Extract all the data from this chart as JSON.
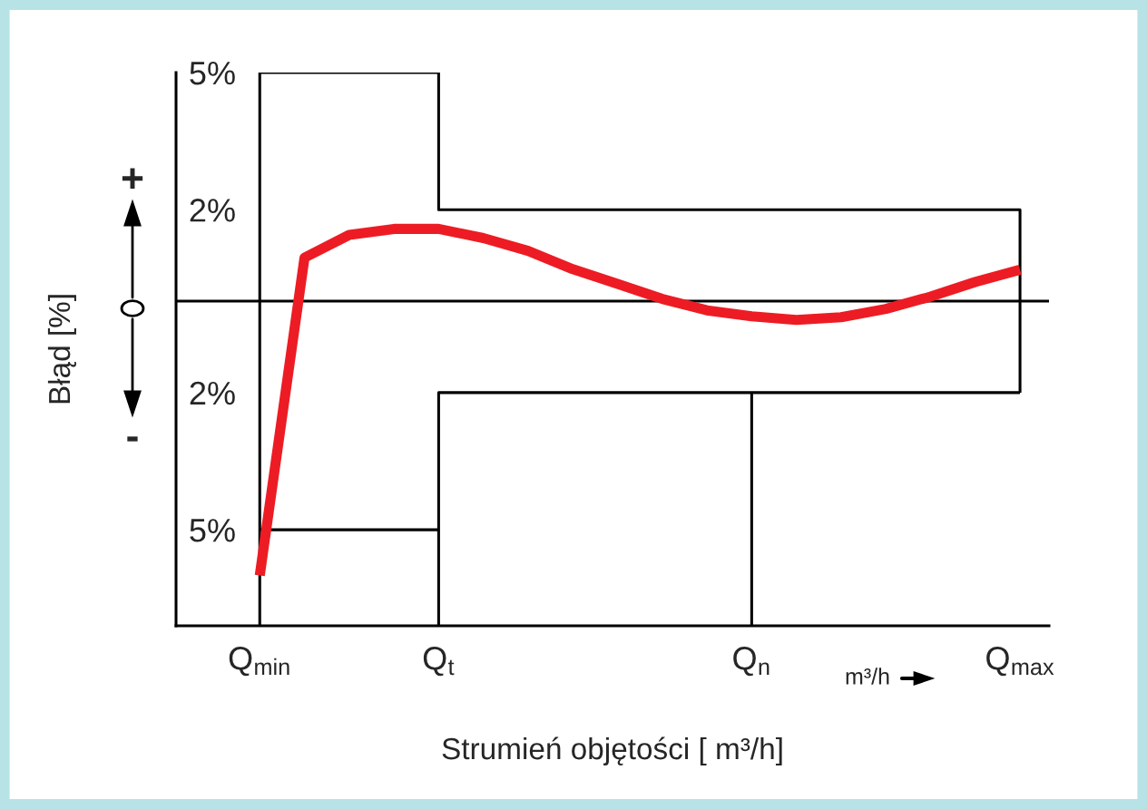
{
  "chart_data": {
    "type": "line",
    "xlabel": "Strumień objętości [ m³/h]",
    "ylabel": "Błąd [%]",
    "categories": [
      "Q$_{min}$",
      null,
      null,
      null,
      "Q$_{t}$",
      null,
      null,
      null,
      null,
      null,
      null,
      "Q$_{n}$",
      null,
      null,
      null,
      null,
      null,
      "Q$_{max}$"
    ],
    "ylim": [
      -7.1,
      5
    ],
    "yticks": [
      {
        "value": 5,
        "label": "5%"
      },
      {
        "value": 2,
        "label": "2%"
      },
      {
        "value": -2,
        "label": "2%"
      },
      {
        "value": -5,
        "label": "5%"
      }
    ],
    "grid": false,
    "legend": false,
    "annotations": [
      "+",
      "-",
      "m³/h"
    ],
    "ref_lines": [
      {
        "axis": "y",
        "value": 0,
        "color": "#000000"
      }
    ],
    "series": [
      {
        "color": "#000000",
        "x": [
          "Q$_{min}$",
          "Q$_{min}$",
          "Q$_{t}$",
          "Q$_{t}$",
          "Q$_{max}$",
          "Q$_{max}$"
        ],
        "values": [
          -7.1,
          5,
          5,
          2,
          2,
          -2
        ]
      },
      {
        "color": "#000000",
        "x": [
          "Q$_{min}$",
          "Q$_{t}$"
        ],
        "values": [
          -5,
          -5
        ]
      },
      {
        "color": "#000000",
        "x": [
          "Q$_{t}$",
          "Q$_{t}$",
          "Q$_{max}$"
        ],
        "values": [
          -7.1,
          -2,
          -2
        ]
      },
      {
        "color": "#000000",
        "x": [
          "Q$_{n}$",
          "Q$_{n}$"
        ],
        "values": [
          -7.1,
          -2
        ]
      },
      {
        "color": "#ed1c24",
        "values": [
          -6.0,
          0.95,
          1.45,
          1.58,
          1.58,
          1.38,
          1.1,
          0.7,
          0.38,
          0.05,
          -0.2,
          -0.33,
          -0.41,
          -0.35,
          -0.17,
          0.1,
          0.42,
          0.69
        ]
      }
    ]
  }
}
